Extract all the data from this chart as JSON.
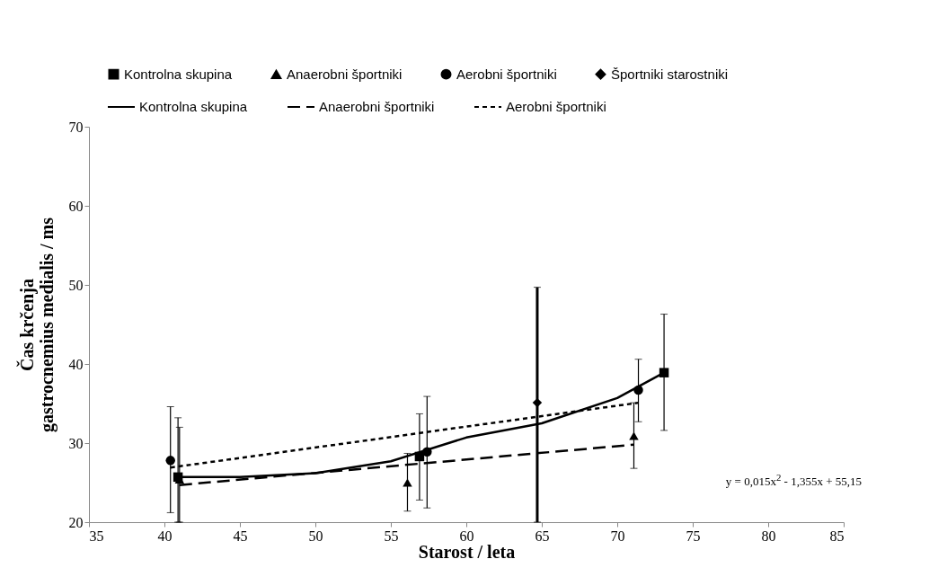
{
  "chart_data": {
    "type": "scatter",
    "xlabel": "Starost / leta",
    "ylabel": "Čas krčenja\ngastrocnemius medialis  / ms",
    "xlim": [
      35,
      85
    ],
    "xticks": [
      35,
      40,
      45,
      50,
      55,
      60,
      65,
      70,
      75,
      80,
      85
    ],
    "ylim": [
      20,
      70
    ],
    "yticks": [
      20,
      30,
      40,
      50,
      60,
      70
    ],
    "grid": false,
    "legend": "top",
    "annotations": [
      "y = 0,015x$^{2}$ - 1,355x + 55,15"
    ],
    "series": [
      {
        "name": "Kontrolna skupina",
        "type": "scatter",
        "marker": "square",
        "color": "#000000",
        "x": [
          40.9,
          56.9,
          73.1
        ],
        "values": [
          25.7,
          28.3,
          38.9
        ],
        "errors": [
          [
            20,
            33.2
          ],
          [
            22.8,
            33.7
          ],
          [
            31.6,
            46.3
          ]
        ]
      },
      {
        "name": "Anaerobni športniki",
        "type": "scatter",
        "marker": "triangle",
        "color": "#000000",
        "x": [
          41.0,
          56.1,
          71.1
        ],
        "values": [
          25.4,
          25.0,
          30.9
        ],
        "errors": [
          [
            20,
            32.0
          ],
          [
            21.4,
            28.7
          ],
          [
            26.8,
            35.1
          ]
        ]
      },
      {
        "name": "Aerobni športniki",
        "type": "scatter",
        "marker": "circle",
        "color": "#000000",
        "x": [
          40.4,
          57.4,
          71.4
        ],
        "values": [
          27.8,
          28.9,
          36.7
        ],
        "errors": [
          [
            21.2,
            34.6
          ],
          [
            21.8,
            35.9
          ],
          [
            32.7,
            40.6
          ]
        ]
      },
      {
        "name": "Športniki starostniki",
        "type": "scatter",
        "marker": "diamond",
        "color": "#000000",
        "x": [
          64.7
        ],
        "values": [
          35.1
        ],
        "errors": [
          [
            20,
            49.7
          ]
        ]
      },
      {
        "name": "Kontrolna skupina",
        "type": "line",
        "line_style": "solid",
        "color": "#000000",
        "x": [
          40.9,
          45,
          50,
          55,
          60,
          65,
          70,
          73.1
        ],
        "values": [
          25.7,
          25.7,
          26.2,
          27.7,
          30.7,
          32.5,
          35.7,
          38.9
        ]
      },
      {
        "name": "Anaerobni športniki",
        "type": "line",
        "line_style": "dashed",
        "color": "#000000",
        "x": [
          41.0,
          71.1
        ],
        "values": [
          24.7,
          29.8
        ]
      },
      {
        "name": "Aerobni športniki",
        "type": "line",
        "line_style": "dotted",
        "color": "#000000",
        "x": [
          40.4,
          71.4
        ],
        "values": [
          26.9,
          35.1
        ]
      }
    ]
  }
}
